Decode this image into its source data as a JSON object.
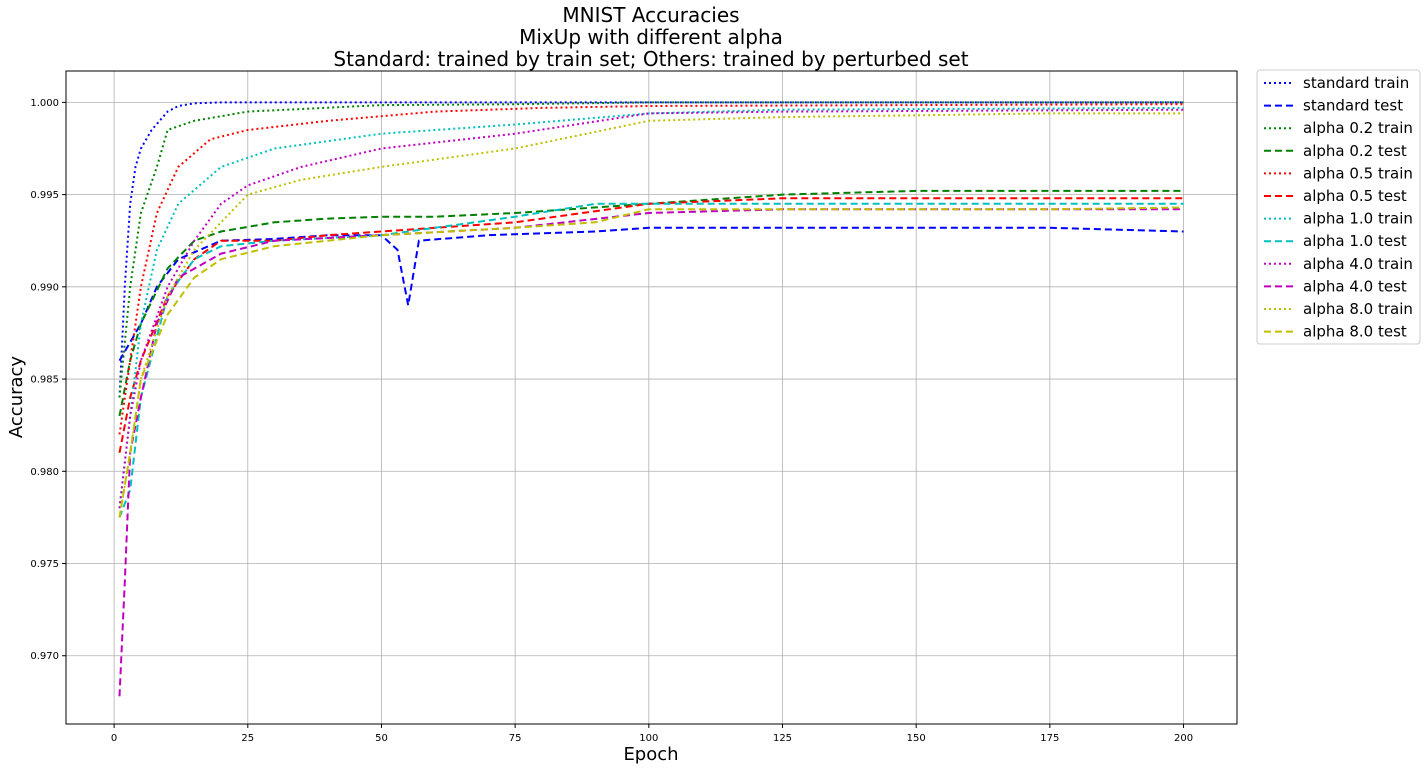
{
  "chart_data": {
    "type": "line",
    "title_lines": [
      "MNIST Accuracies",
      "MixUp with different alpha",
      "Standard: trained by train set; Others: trained by perturbed set"
    ],
    "xlabel": "Epoch",
    "ylabel": "Accuracy",
    "xlim": [
      -9,
      210
    ],
    "ylim": [
      0.9663,
      1.0017
    ],
    "xticks": [
      0,
      25,
      50,
      75,
      100,
      125,
      150,
      175,
      200
    ],
    "xtick_labels": [
      "0",
      "25",
      "50",
      "75",
      "100",
      "125",
      "150",
      "175",
      "200"
    ],
    "yticks": [
      0.97,
      0.975,
      0.98,
      0.985,
      0.99,
      0.995,
      1.0
    ],
    "ytick_labels": [
      "0.970",
      "0.975",
      "0.980",
      "0.985",
      "0.990",
      "0.995",
      "1.000"
    ],
    "grid": true,
    "legend_position": "outside-right",
    "series": [
      {
        "name": "standard train",
        "color": "#0000ff",
        "style": "dotted",
        "points": [
          [
            1,
            0.984
          ],
          [
            2,
            0.99
          ],
          [
            3,
            0.9945
          ],
          [
            4,
            0.9965
          ],
          [
            5,
            0.9975
          ],
          [
            7,
            0.9985
          ],
          [
            10,
            0.9995
          ],
          [
            12,
            0.9998
          ],
          [
            15,
            0.99995
          ],
          [
            20,
            1.0
          ],
          [
            200,
            1.0
          ]
        ]
      },
      {
        "name": "standard test",
        "color": "#0000ff",
        "style": "dashed",
        "points": [
          [
            1,
            0.986
          ],
          [
            3,
            0.987
          ],
          [
            5,
            0.988
          ],
          [
            8,
            0.99
          ],
          [
            12,
            0.9915
          ],
          [
            20,
            0.9925
          ],
          [
            30,
            0.9926
          ],
          [
            40,
            0.9928
          ],
          [
            50,
            0.9928
          ],
          [
            53,
            0.992
          ],
          [
            55,
            0.989
          ],
          [
            57,
            0.9925
          ],
          [
            70,
            0.9928
          ],
          [
            90,
            0.993
          ],
          [
            100,
            0.9932
          ],
          [
            125,
            0.9932
          ],
          [
            150,
            0.9932
          ],
          [
            175,
            0.9932
          ],
          [
            200,
            0.993
          ]
        ]
      },
      {
        "name": "alpha 0.2 train",
        "color": "#008000",
        "style": "dotted",
        "points": [
          [
            1,
            0.984
          ],
          [
            3,
            0.99
          ],
          [
            5,
            0.994
          ],
          [
            8,
            0.9965
          ],
          [
            10,
            0.9985
          ],
          [
            15,
            0.999
          ],
          [
            25,
            0.9995
          ],
          [
            50,
            0.99985
          ],
          [
            75,
            0.9999
          ],
          [
            100,
            1.0
          ],
          [
            200,
            1.0
          ]
        ]
      },
      {
        "name": "alpha 0.2 test",
        "color": "#008000",
        "style": "dashed",
        "points": [
          [
            1,
            0.983
          ],
          [
            3,
            0.986
          ],
          [
            5,
            0.988
          ],
          [
            10,
            0.991
          ],
          [
            15,
            0.9925
          ],
          [
            20,
            0.993
          ],
          [
            30,
            0.9935
          ],
          [
            40,
            0.9937
          ],
          [
            50,
            0.9938
          ],
          [
            60,
            0.9938
          ],
          [
            75,
            0.994
          ],
          [
            100,
            0.9945
          ],
          [
            125,
            0.995
          ],
          [
            150,
            0.9952
          ],
          [
            175,
            0.9952
          ],
          [
            200,
            0.9952
          ]
        ]
      },
      {
        "name": "alpha 0.5 train",
        "color": "#ff0000",
        "style": "dotted",
        "points": [
          [
            1,
            0.982
          ],
          [
            3,
            0.986
          ],
          [
            5,
            0.99
          ],
          [
            8,
            0.994
          ],
          [
            12,
            0.9965
          ],
          [
            18,
            0.998
          ],
          [
            25,
            0.9985
          ],
          [
            40,
            0.999
          ],
          [
            60,
            0.9995
          ],
          [
            80,
            0.9997
          ],
          [
            100,
            0.9998
          ],
          [
            200,
            0.9999
          ]
        ]
      },
      {
        "name": "alpha 0.5 test",
        "color": "#ff0000",
        "style": "dashed",
        "points": [
          [
            1,
            0.981
          ],
          [
            3,
            0.984
          ],
          [
            5,
            0.986
          ],
          [
            10,
            0.9895
          ],
          [
            15,
            0.9915
          ],
          [
            20,
            0.9925
          ],
          [
            30,
            0.9925
          ],
          [
            40,
            0.9928
          ],
          [
            50,
            0.993
          ],
          [
            60,
            0.9932
          ],
          [
            75,
            0.9935
          ],
          [
            100,
            0.9945
          ],
          [
            125,
            0.9948
          ],
          [
            150,
            0.9948
          ],
          [
            175,
            0.9948
          ],
          [
            200,
            0.9948
          ]
        ]
      },
      {
        "name": "alpha 1.0 train",
        "color": "#00bfbf",
        "style": "dotted",
        "points": [
          [
            1,
            0.978
          ],
          [
            3,
            0.983
          ],
          [
            5,
            0.988
          ],
          [
            8,
            0.992
          ],
          [
            12,
            0.9945
          ],
          [
            20,
            0.9965
          ],
          [
            30,
            0.9975
          ],
          [
            50,
            0.9983
          ],
          [
            75,
            0.9988
          ],
          [
            100,
            0.9994
          ],
          [
            125,
            0.9996
          ],
          [
            200,
            0.9997
          ]
        ]
      },
      {
        "name": "alpha 1.0 test",
        "color": "#00bfbf",
        "style": "dashed",
        "points": [
          [
            1,
            0.9775
          ],
          [
            3,
            0.979
          ],
          [
            5,
            0.984
          ],
          [
            10,
            0.9895
          ],
          [
            15,
            0.9915
          ],
          [
            20,
            0.9922
          ],
          [
            30,
            0.9925
          ],
          [
            50,
            0.9928
          ],
          [
            60,
            0.9932
          ],
          [
            75,
            0.9938
          ],
          [
            90,
            0.9945
          ],
          [
            100,
            0.9945
          ],
          [
            125,
            0.9945
          ],
          [
            150,
            0.9945
          ],
          [
            175,
            0.9945
          ],
          [
            200,
            0.9945
          ]
        ]
      },
      {
        "name": "alpha 4.0 train",
        "color": "#bf00bf",
        "style": "dotted",
        "points": [
          [
            1,
            0.978
          ],
          [
            3,
            0.983
          ],
          [
            5,
            0.986
          ],
          [
            10,
            0.99
          ],
          [
            15,
            0.9925
          ],
          [
            20,
            0.9945
          ],
          [
            25,
            0.9955
          ],
          [
            35,
            0.9965
          ],
          [
            50,
            0.9975
          ],
          [
            75,
            0.9983
          ],
          [
            100,
            0.9994
          ],
          [
            125,
            0.9995
          ],
          [
            200,
            0.9996
          ]
        ]
      },
      {
        "name": "alpha 4.0 test",
        "color": "#bf00bf",
        "style": "dashed",
        "points": [
          [
            1,
            0.9678
          ],
          [
            2,
            0.974
          ],
          [
            3,
            0.981
          ],
          [
            5,
            0.984
          ],
          [
            8,
            0.988
          ],
          [
            12,
            0.9905
          ],
          [
            20,
            0.9918
          ],
          [
            30,
            0.9925
          ],
          [
            50,
            0.9928
          ],
          [
            75,
            0.9932
          ],
          [
            100,
            0.994
          ],
          [
            125,
            0.9942
          ],
          [
            150,
            0.9942
          ],
          [
            175,
            0.9942
          ],
          [
            200,
            0.9942
          ]
        ]
      },
      {
        "name": "alpha 8.0 train",
        "color": "#bfbf00",
        "style": "dotted",
        "points": [
          [
            1,
            0.9775
          ],
          [
            3,
            0.981
          ],
          [
            5,
            0.985
          ],
          [
            10,
            0.9895
          ],
          [
            15,
            0.992
          ],
          [
            20,
            0.9935
          ],
          [
            25,
            0.995
          ],
          [
            35,
            0.9958
          ],
          [
            50,
            0.9965
          ],
          [
            75,
            0.9975
          ],
          [
            100,
            0.999
          ],
          [
            125,
            0.9992
          ],
          [
            150,
            0.9993
          ],
          [
            175,
            0.9994
          ],
          [
            200,
            0.9994
          ]
        ]
      },
      {
        "name": "alpha 8.0 test",
        "color": "#bfbf00",
        "style": "dashed",
        "points": [
          [
            1,
            0.9775
          ],
          [
            3,
            0.981
          ],
          [
            5,
            0.985
          ],
          [
            10,
            0.9885
          ],
          [
            15,
            0.9905
          ],
          [
            20,
            0.9915
          ],
          [
            30,
            0.9922
          ],
          [
            50,
            0.9928
          ],
          [
            75,
            0.9932
          ],
          [
            90,
            0.9935
          ],
          [
            100,
            0.9942
          ],
          [
            125,
            0.9942
          ],
          [
            150,
            0.9942
          ],
          [
            175,
            0.9942
          ],
          [
            200,
            0.9943
          ]
        ]
      }
    ]
  }
}
